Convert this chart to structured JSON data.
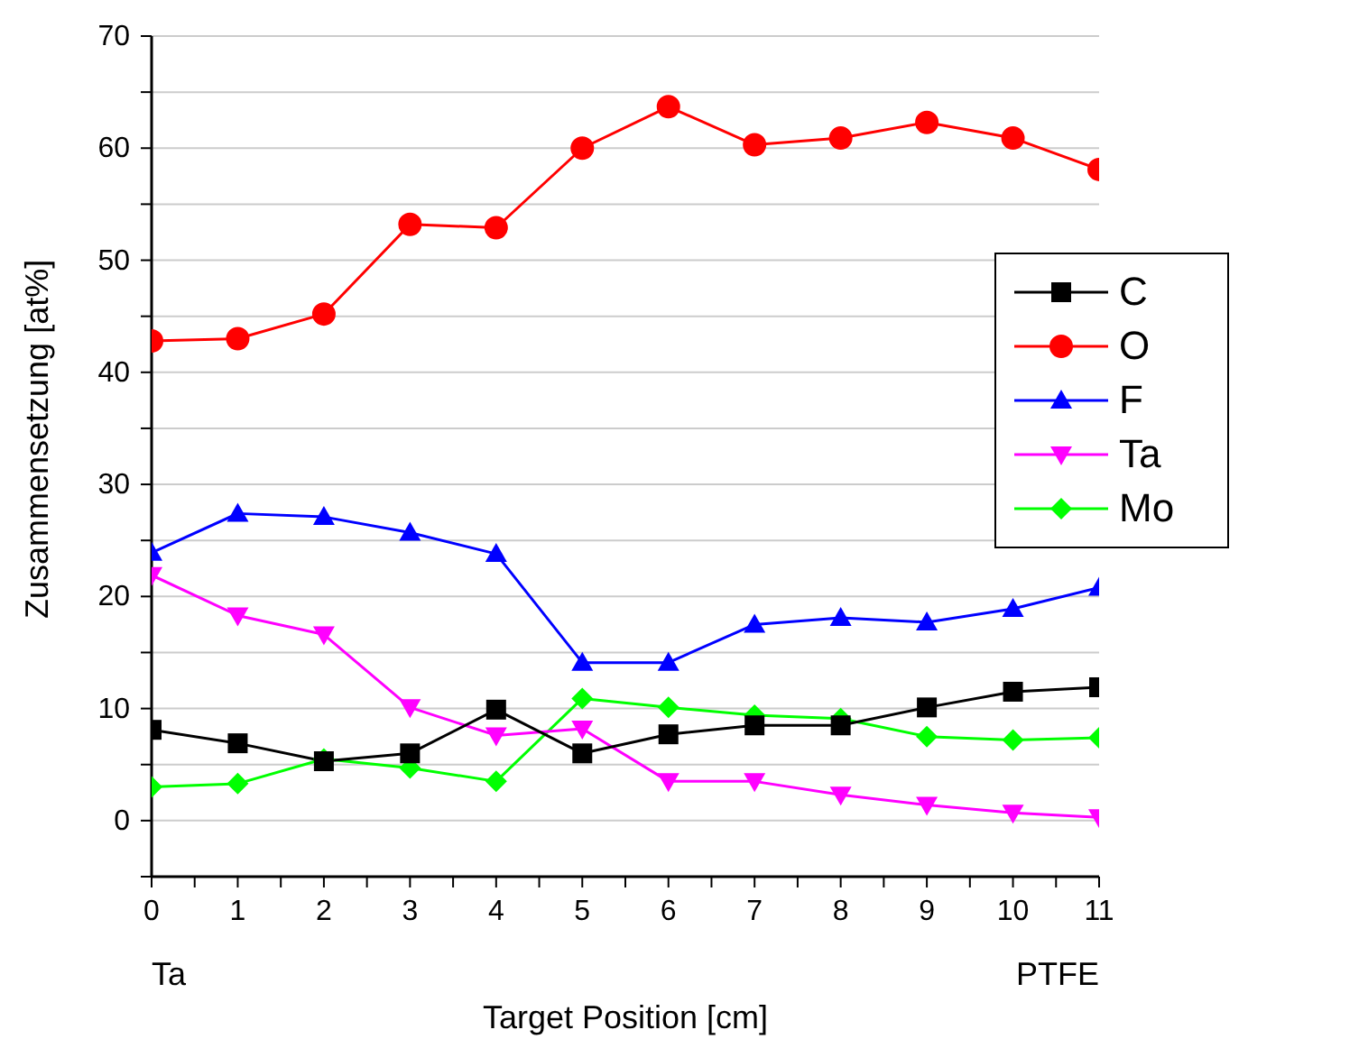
{
  "chart_data": {
    "type": "line",
    "xlabel": "Target Position [cm]",
    "ylabel": "Zusammensetzung [at%]",
    "x": [
      0,
      1,
      2,
      3,
      4,
      5,
      6,
      7,
      8,
      9,
      10,
      11
    ],
    "series": [
      {
        "name": "C",
        "color": "#000000",
        "marker": "square",
        "values": [
          8.1,
          6.9,
          5.3,
          6.0,
          9.9,
          6.0,
          7.7,
          8.5,
          8.5,
          10.1,
          11.5,
          11.9
        ]
      },
      {
        "name": "O",
        "color": "#ff0000",
        "marker": "circle",
        "values": [
          42.8,
          43.0,
          45.2,
          53.2,
          52.9,
          60.0,
          63.7,
          60.3,
          60.9,
          62.3,
          60.9,
          58.1
        ]
      },
      {
        "name": "F",
        "color": "#0000ff",
        "marker": "triangle",
        "values": [
          23.9,
          27.4,
          27.1,
          25.7,
          23.8,
          14.1,
          14.1,
          17.5,
          18.1,
          17.7,
          18.9,
          20.8
        ]
      },
      {
        "name": "Ta",
        "color": "#ff00ff",
        "marker": "triangle-down",
        "values": [
          21.9,
          18.3,
          16.6,
          10.1,
          7.6,
          8.2,
          3.5,
          3.5,
          2.3,
          1.4,
          0.7,
          0.3
        ]
      },
      {
        "name": "Mo",
        "color": "#00ff00",
        "marker": "diamond",
        "values": [
          3.0,
          3.3,
          5.5,
          4.7,
          3.5,
          10.9,
          10.1,
          9.4,
          9.1,
          7.5,
          7.2,
          7.4
        ]
      }
    ],
    "xlim": [
      0,
      11
    ],
    "xticks": [
      0,
      {
        "value": 0.5,
        "label": null
      },
      1,
      {
        "value": 1.5,
        "label": null
      },
      2,
      {
        "value": 2.5,
        "label": null
      },
      3,
      {
        "value": 3.5,
        "label": null
      },
      4,
      {
        "value": 4.5,
        "label": null
      },
      5,
      {
        "value": 5.5,
        "label": null
      },
      6,
      {
        "value": 6.5,
        "label": null
      },
      7,
      {
        "value": 7.5,
        "label": null
      },
      8,
      {
        "value": 8.5,
        "label": null
      },
      9,
      {
        "value": 9.5,
        "label": null
      },
      10,
      {
        "value": 10.5,
        "label": null
      },
      11
    ],
    "ylim": [
      -5,
      70
    ],
    "yticks": [
      {
        "value": -5,
        "label": null
      },
      0,
      {
        "value": 5,
        "label": null
      },
      10,
      {
        "value": 15,
        "label": null
      },
      20,
      {
        "value": 25,
        "label": null
      },
      30,
      {
        "value": 35,
        "label": null
      },
      40,
      {
        "value": 45,
        "label": null
      },
      50,
      {
        "value": 55,
        "label": null
      },
      60,
      {
        "value": 65,
        "label": null
      },
      70
    ],
    "grid": "y",
    "legend": "right",
    "line_style": "solid",
    "annotations": [
      "Ta",
      "PTFE"
    ]
  }
}
